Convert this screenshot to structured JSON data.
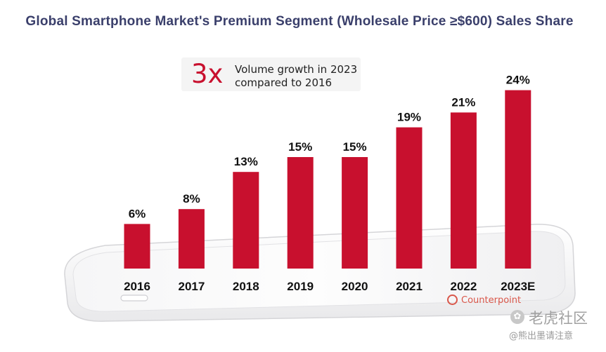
{
  "chart_data": {
    "type": "bar",
    "title": "Global Smartphone Market's Premium Segment (Wholesale Price ≥$600) Sales Share",
    "categories": [
      "2016",
      "2017",
      "2018",
      "2019",
      "2020",
      "2021",
      "2022",
      "2023E"
    ],
    "values": [
      6,
      8,
      13,
      15,
      15,
      19,
      21,
      24
    ],
    "data_labels": [
      "6%",
      "8%",
      "13%",
      "15%",
      "15%",
      "19%",
      "21%",
      "24%"
    ],
    "unit": "%",
    "ylim": [
      0,
      24
    ],
    "grid": false,
    "legend": "none",
    "bar_color": "#c8102e",
    "annotation": {
      "big_text": "3x",
      "line1": "Volume growth in 2023",
      "line2": "compared to 2016"
    },
    "source": "Counterpoint"
  },
  "colors": {
    "bar": "#c8102e",
    "title": "#3a3f6b",
    "callout_accent": "#c8102e"
  },
  "watermark": {
    "name": "老虎社区",
    "note": "@熊出墨请注意",
    "badge_icon": "tiger-community-icon"
  }
}
